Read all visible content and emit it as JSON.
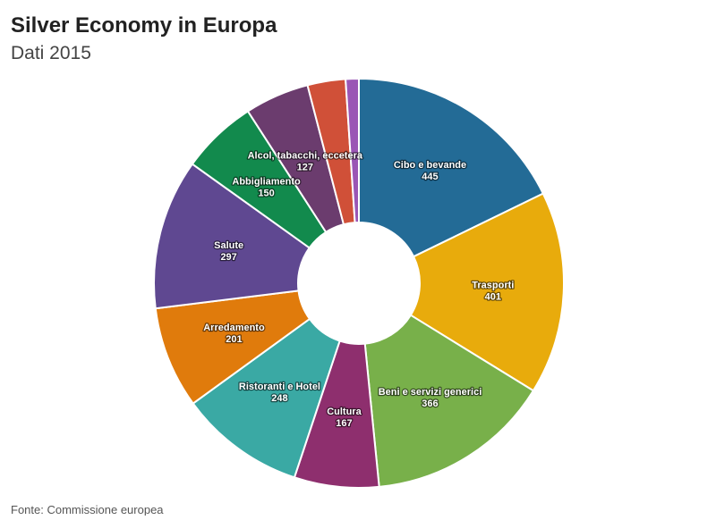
{
  "chart_data": {
    "type": "pie",
    "title": "Silver Economy in Europa",
    "subtitle": "Dati 2015",
    "source": "Fonte: Commissione europea",
    "categories": [
      "Cibo e bevande",
      "Trasporti",
      "Beni e servizi generici",
      "Cultura",
      "Ristoranti e Hotel",
      "Arredamento",
      "Salute",
      "Abbigliamento",
      "Alcol, tabacchi, eccetera",
      null,
      null
    ],
    "values": [
      445,
      401,
      366,
      167,
      248,
      201,
      297,
      150,
      127,
      75,
      26
    ],
    "colors": [
      "#236b96",
      "#e8ab0c",
      "#78b04a",
      "#8e2f6e",
      "#3aa9a4",
      "#e07b0c",
      "#5f4891",
      "#128a4d",
      "#6b3c6e",
      "#d05038",
      "#9a56b5"
    ],
    "donut": true
  }
}
